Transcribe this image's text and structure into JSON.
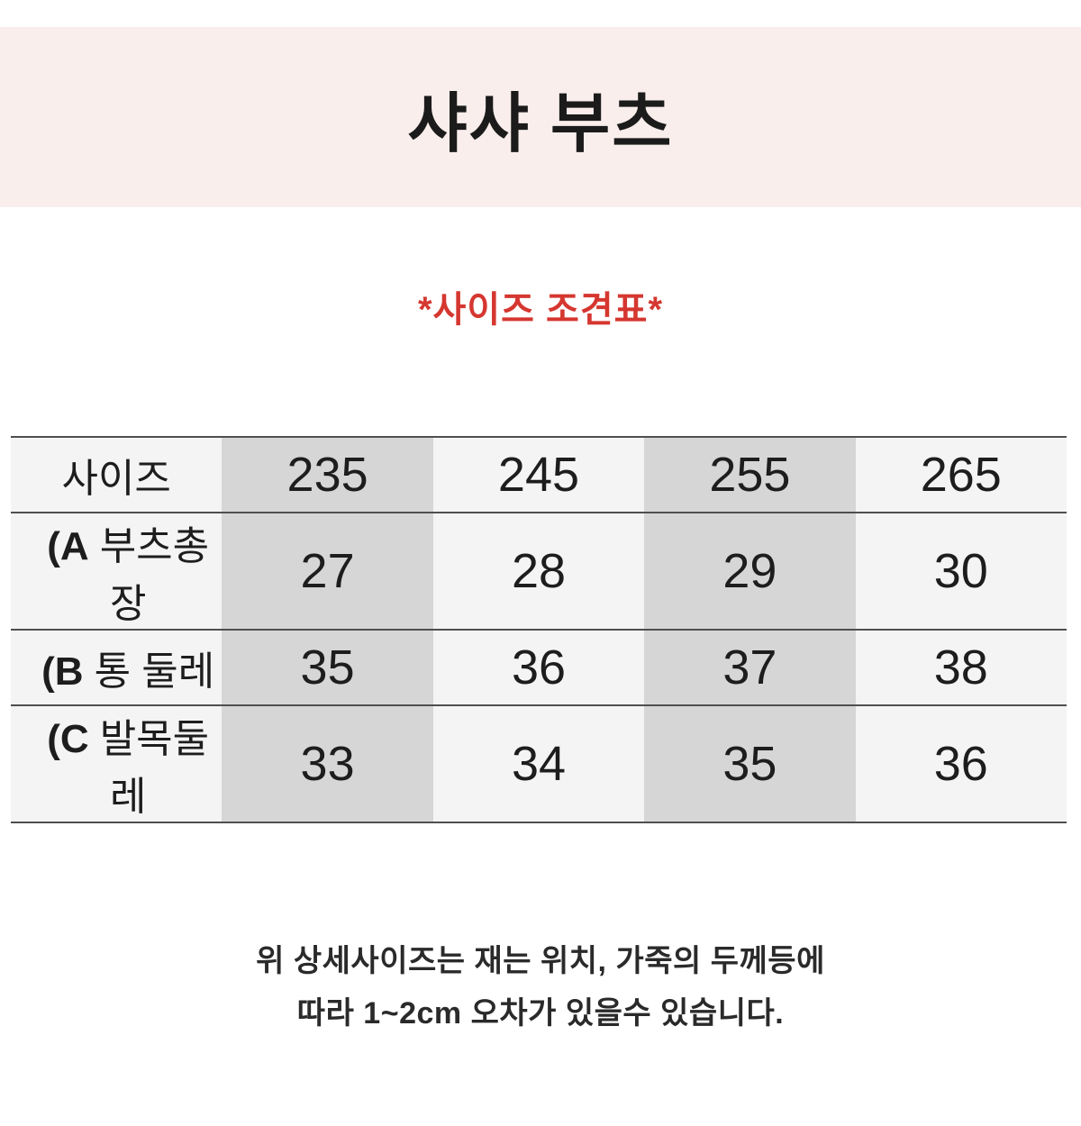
{
  "header": {
    "title": "샤샤 부츠",
    "subtitle": "*사이즈 조견표*"
  },
  "chart_data": {
    "type": "table",
    "title": "샤샤 부츠",
    "subtitle": "*사이즈 조견표*",
    "columns": [
      "사이즈",
      "235",
      "245",
      "255",
      "265"
    ],
    "rows": [
      {
        "label": "(A 부츠총장",
        "label_prefix": "(A",
        "label_name": "부츠총장",
        "values": [
          "27",
          "28",
          "29",
          "30"
        ]
      },
      {
        "label": "(B 통 둘레",
        "label_prefix": "(B",
        "label_name": "통 둘레",
        "values": [
          "35",
          "36",
          "37",
          "38"
        ]
      },
      {
        "label": "(C 발목둘레",
        "label_prefix": "(C",
        "label_name": "발목둘레",
        "values": [
          "33",
          "34",
          "35",
          "36"
        ]
      }
    ],
    "layout": {
      "gray_columns": [
        "235",
        "255"
      ],
      "grid": "horizontal-lines-only"
    }
  },
  "footer": {
    "line1": "위 상세사이즈는 재는 위치, 가죽의 두께등에",
    "line2": "따라 1~2cm 오차가 있을수 있습니다."
  },
  "colors": {
    "header_band_bg": "#f9eeec",
    "accent_red": "#d53730",
    "column_gray": "#d7d6d6",
    "column_light": "#f5f4f4",
    "table_line": "#4f4f4f"
  }
}
